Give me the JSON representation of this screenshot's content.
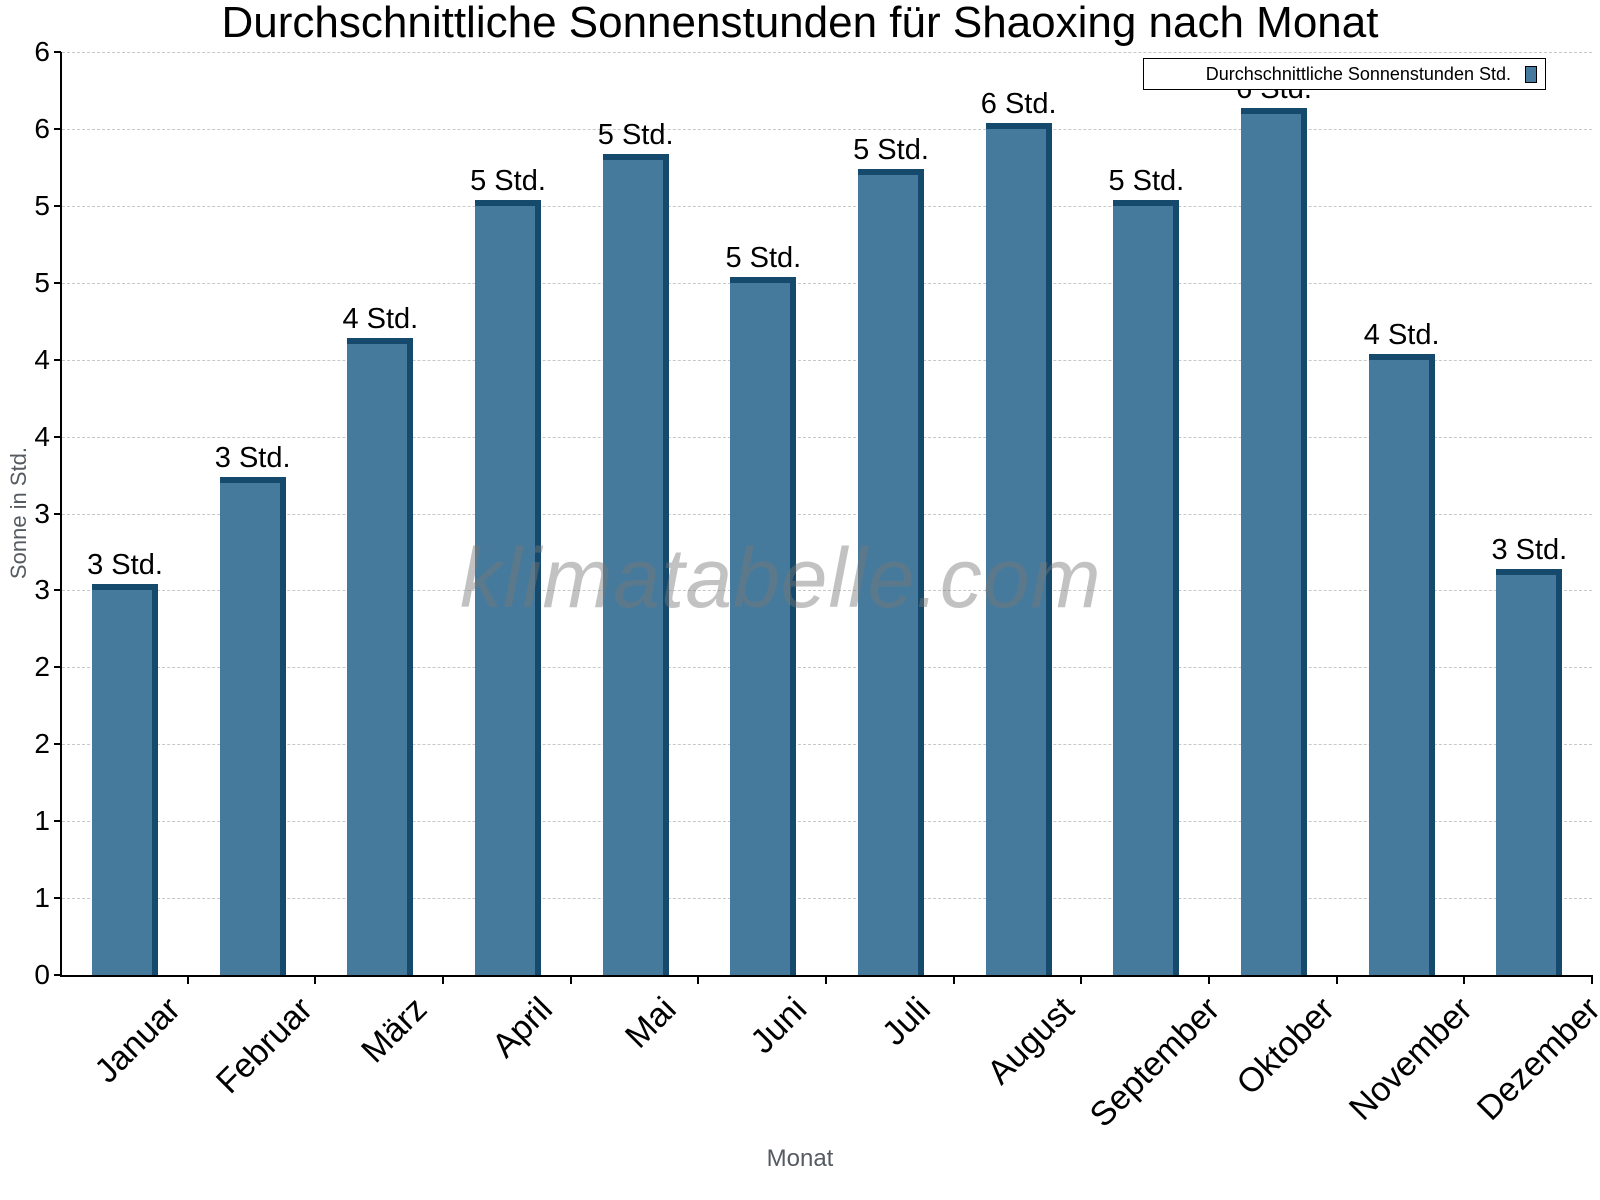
{
  "chart_data": {
    "type": "bar",
    "title": "Durchschnittliche Sonnenstunden für Shaoxing nach Monat",
    "xlabel": "Monat",
    "ylabel": "Sonne in Std.",
    "ylim": [
      0,
      6
    ],
    "grid": true,
    "legend_position": "top-right",
    "watermark": "klimatabelle.com",
    "y_tick_labels": [
      "0",
      "1",
      "1",
      "2",
      "2",
      "3",
      "3",
      "4",
      "4",
      "5",
      "5",
      "6",
      "6"
    ],
    "categories": [
      "Januar",
      "Februar",
      "März",
      "April",
      "Mai",
      "Juni",
      "Juli",
      "August",
      "September",
      "Oktober",
      "November",
      "Dezember"
    ],
    "series": [
      {
        "name": "Durchschnittliche Sonnenstunden Std.",
        "color": "#467a9c",
        "values": [
          2.5,
          3.2,
          4.1,
          5.0,
          5.3,
          4.5,
          5.2,
          5.5,
          5.0,
          5.6,
          4.0,
          2.6
        ],
        "data_labels": [
          "3 Std.",
          "3 Std.",
          "4 Std.",
          "5 Std.",
          "5 Std.",
          "5 Std.",
          "5 Std.",
          "6 Std.",
          "5 Std.",
          "6 Std.",
          "4 Std.",
          "3 Std."
        ]
      }
    ]
  },
  "legend": {
    "label": "Durchschnittliche Sonnenstunden Std."
  },
  "colors": {
    "bar_front": "#467a9c",
    "bar_side": "#154a6c",
    "grid": "#c8c8c8",
    "axis_title": "#555b61"
  }
}
